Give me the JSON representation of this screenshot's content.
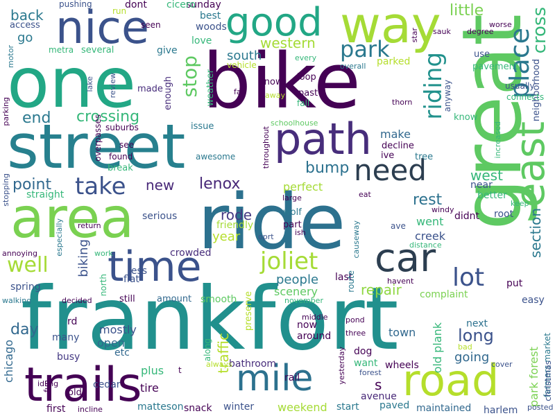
{
  "words": [
    {
      "text": "frankfort",
      "color": "#21908d"
    },
    {
      "text": "bike",
      "color": "#440154"
    },
    {
      "text": "one",
      "color": "#22a785"
    },
    {
      "text": "ride",
      "color": "#2c718e"
    },
    {
      "text": "street",
      "color": "#27808e"
    },
    {
      "text": "great",
      "color": "#5ec962"
    },
    {
      "text": "area",
      "color": "#7ad151"
    },
    {
      "text": "way",
      "color": "#a5db36"
    },
    {
      "text": "nice",
      "color": "#3b528b"
    },
    {
      "text": "path",
      "color": "#472d7b"
    },
    {
      "text": "time",
      "color": "#3b528b"
    },
    {
      "text": "trails",
      "color": "#440154"
    },
    {
      "text": "mile",
      "color": "#2c718e"
    },
    {
      "text": "road",
      "color": "#b5de2b"
    },
    {
      "text": "good",
      "color": "#22a785"
    },
    {
      "text": "car",
      "color": "#2c3e50"
    },
    {
      "text": "east",
      "color": "#5ec962"
    },
    {
      "text": "need",
      "color": "#2c3e50"
    },
    {
      "text": "park",
      "color": "#2a788e"
    },
    {
      "text": "place",
      "color": "#2a788e"
    },
    {
      "text": "riding",
      "color": "#21918c"
    },
    {
      "text": "cross",
      "color": "#35b779"
    },
    {
      "text": "neighborhood",
      "color": "#3b528b"
    },
    {
      "text": "little",
      "color": "#7ad151"
    },
    {
      "text": "western",
      "color": "#a5db36"
    },
    {
      "text": "south",
      "color": "#2a788e"
    },
    {
      "text": "stop",
      "color": "#5ec962"
    },
    {
      "text": "crossing",
      "color": "#35b779"
    },
    {
      "text": "end",
      "color": "#2a788e"
    },
    {
      "text": "take",
      "color": "#3b528b"
    },
    {
      "text": "point",
      "color": "#31688e"
    },
    {
      "text": "new",
      "color": "#482878"
    },
    {
      "text": "lenox",
      "color": "#482878"
    },
    {
      "text": "bump",
      "color": "#2c718e"
    },
    {
      "text": "well",
      "color": "#a5db36"
    },
    {
      "text": "joliet",
      "color": "#a5db36"
    },
    {
      "text": "lot",
      "color": "#3b528b"
    },
    {
      "text": "rest",
      "color": "#2c718e"
    },
    {
      "text": "west",
      "color": "#35b779"
    },
    {
      "text": "section",
      "color": "#2a788e"
    },
    {
      "text": "people",
      "color": "#2a788e"
    },
    {
      "text": "repair",
      "color": "#90d743"
    },
    {
      "text": "biking",
      "color": "#3b528b"
    },
    {
      "text": "long",
      "color": "#3b528b"
    },
    {
      "text": "going",
      "color": "#31688e"
    },
    {
      "text": "day",
      "color": "#31688e"
    },
    {
      "text": "traffic",
      "color": "#b5de2b"
    },
    {
      "text": "chicago",
      "color": "#31688e"
    },
    {
      "text": "rode",
      "color": "#443983"
    },
    {
      "text": "year",
      "color": "#b5de2b"
    },
    {
      "text": "back",
      "color": "#2a788e"
    },
    {
      "text": "go",
      "color": "#2a788e"
    },
    {
      "text": "make",
      "color": "#31688e"
    },
    {
      "text": "went",
      "color": "#35b779"
    },
    {
      "text": "creek",
      "color": "#3b528b"
    },
    {
      "text": "scenery",
      "color": "#5ec962"
    },
    {
      "text": "perfect",
      "color": "#a5db36"
    },
    {
      "text": "open",
      "color": "#31688e"
    },
    {
      "text": "mostly",
      "color": "#3b528b"
    },
    {
      "text": "winter",
      "color": "#3b528b"
    },
    {
      "text": "weekend",
      "color": "#a5db36"
    },
    {
      "text": "bathroom",
      "color": "#472d7b"
    },
    {
      "text": "avenue",
      "color": "#482878"
    },
    {
      "text": "busy",
      "color": "#443983"
    },
    {
      "text": "matteson",
      "color": "#2a788e"
    },
    {
      "text": "snack",
      "color": "#440154"
    },
    {
      "text": "tire",
      "color": "#440154"
    },
    {
      "text": "plus",
      "color": "#35b779"
    },
    {
      "text": "cedar",
      "color": "#3b528b"
    },
    {
      "text": "wheels",
      "color": "#440154"
    },
    {
      "text": "easy",
      "color": "#3b528b"
    },
    {
      "text": "next",
      "color": "#2c718e"
    },
    {
      "text": "old plank",
      "color": "#35b779"
    },
    {
      "text": "park forest",
      "color": "#7ad151"
    },
    {
      "text": "farmers market",
      "color": "#2a788e"
    },
    {
      "text": "christmas",
      "color": "#3b528b"
    },
    {
      "text": "maintained",
      "color": "#31688e"
    },
    {
      "text": "harlem",
      "color": "#3b528b"
    },
    {
      "text": "paved",
      "color": "#2a788e"
    },
    {
      "text": "start",
      "color": "#2a788e"
    },
    {
      "text": "rail",
      "color": "#440154"
    },
    {
      "text": "town",
      "color": "#31688e"
    },
    {
      "text": "dog",
      "color": "#440154"
    },
    {
      "text": "around",
      "color": "#440154"
    },
    {
      "text": "now",
      "color": "#440154"
    },
    {
      "text": "want",
      "color": "#35b779"
    },
    {
      "text": "smooth",
      "color": "#5ec962"
    },
    {
      "text": "flat",
      "color": "#3b528b"
    },
    {
      "text": "less",
      "color": "#3b528b"
    },
    {
      "text": "amount",
      "color": "#31688e"
    },
    {
      "text": "still",
      "color": "#440154"
    },
    {
      "text": "put",
      "color": "#440154"
    },
    {
      "text": "root",
      "color": "#3b528b"
    },
    {
      "text": "better",
      "color": "#35b779"
    },
    {
      "text": "near",
      "color": "#3b528b"
    },
    {
      "text": "complaint",
      "color": "#7ad151"
    },
    {
      "text": "crowded",
      "color": "#472d7b"
    },
    {
      "text": "straight",
      "color": "#35b779"
    },
    {
      "text": "spring",
      "color": "#3b528b"
    },
    {
      "text": "rd",
      "color": "#440154"
    },
    {
      "text": "many",
      "color": "#3b528b"
    },
    {
      "text": "etc",
      "color": "#31688e"
    },
    {
      "text": "serious",
      "color": "#3b528b"
    },
    {
      "text": "friendly",
      "color": "#a5db36"
    },
    {
      "text": "didnt",
      "color": "#440154"
    },
    {
      "text": "last",
      "color": "#440154"
    },
    {
      "text": "first",
      "color": "#440154"
    },
    {
      "text": "sunday",
      "color": "#440154"
    },
    {
      "text": "cicero",
      "color": "#35b779"
    },
    {
      "text": "dont",
      "color": "#440154"
    },
    {
      "text": "best",
      "color": "#2a788e"
    },
    {
      "text": "woods",
      "color": "#3b528b"
    },
    {
      "text": "love",
      "color": "#35b779"
    },
    {
      "text": "access",
      "color": "#3b528b"
    },
    {
      "text": "pushing",
      "color": "#3b528b"
    },
    {
      "text": "run",
      "color": "#b5de2b"
    },
    {
      "text": "seen",
      "color": "#440154"
    },
    {
      "text": "metra",
      "color": "#35b779"
    },
    {
      "text": "several",
      "color": "#35b779"
    },
    {
      "text": "give",
      "color": "#2a788e"
    },
    {
      "text": "made",
      "color": "#472d7b"
    },
    {
      "text": "enough",
      "color": "#472d7b"
    },
    {
      "text": "weather",
      "color": "#35b779"
    },
    {
      "text": "issue",
      "color": "#2a788e"
    },
    {
      "text": "schoolhouse",
      "color": "#5ec962"
    },
    {
      "text": "throughout",
      "color": "#440154"
    },
    {
      "text": "awesome",
      "color": "#2a788e"
    },
    {
      "text": "overpasses",
      "color": "#440154"
    },
    {
      "text": "suburbs",
      "color": "#440154"
    },
    {
      "text": "found",
      "color": "#440154"
    },
    {
      "text": "see",
      "color": "#440154"
    },
    {
      "text": "break",
      "color": "#35b779"
    },
    {
      "text": "motor",
      "color": "#2a788e"
    },
    {
      "text": "parking",
      "color": "#440154"
    },
    {
      "text": "lake",
      "color": "#3b528b"
    },
    {
      "text": "review",
      "color": "#3b528b"
    },
    {
      "text": "stopping",
      "color": "#3b528b"
    },
    {
      "text": "return",
      "color": "#440154"
    },
    {
      "text": "annoying",
      "color": "#440154"
    },
    {
      "text": "especially",
      "color": "#2a788e"
    },
    {
      "text": "work",
      "color": "#35b779"
    },
    {
      "text": "walking",
      "color": "#2a788e"
    },
    {
      "text": "decided",
      "color": "#440154"
    },
    {
      "text": "north",
      "color": "#35b779"
    },
    {
      "text": "preserve",
      "color": "#b5de2b"
    },
    {
      "text": "route",
      "color": "#2a788e"
    },
    {
      "text": "vehicle",
      "color": "#b5de2b"
    },
    {
      "text": "every",
      "color": "#35b779"
    },
    {
      "text": "loop",
      "color": "#440154"
    },
    {
      "text": "snow",
      "color": "#440154"
    },
    {
      "text": "past",
      "color": "#440154"
    },
    {
      "text": "fall",
      "color": "#35b779"
    },
    {
      "text": "away",
      "color": "#b5de2b"
    },
    {
      "text": "far",
      "color": "#440154"
    },
    {
      "text": "overall",
      "color": "#2a788e"
    },
    {
      "text": "parked",
      "color": "#b5de2b"
    },
    {
      "text": "thorn",
      "color": "#440154"
    },
    {
      "text": "decline",
      "color": "#440154"
    },
    {
      "text": "ive",
      "color": "#440154"
    },
    {
      "text": "tree",
      "color": "#2a788e"
    },
    {
      "text": "anyway",
      "color": "#3b528b"
    },
    {
      "text": "know",
      "color": "#35b779"
    },
    {
      "text": "use",
      "color": "#3b528b"
    },
    {
      "text": "pavement",
      "color": "#35b779"
    },
    {
      "text": "usually",
      "color": "#3b528b"
    },
    {
      "text": "connects",
      "color": "#35b779"
    },
    {
      "text": "sauk",
      "color": "#440154"
    },
    {
      "text": "degree",
      "color": "#440154"
    },
    {
      "text": "worse",
      "color": "#440154"
    },
    {
      "text": "star",
      "color": "#440154"
    },
    {
      "text": "increased",
      "color": "#35b779"
    },
    {
      "text": "keep",
      "color": "#35b779"
    },
    {
      "text": "windy",
      "color": "#440154"
    },
    {
      "text": "eat",
      "color": "#440154"
    },
    {
      "text": "large",
      "color": "#440154"
    },
    {
      "text": "wolf",
      "color": "#2a788e"
    },
    {
      "text": "part",
      "color": "#440154"
    },
    {
      "text": "ish",
      "color": "#440154"
    },
    {
      "text": "causeway",
      "color": "#2a788e"
    },
    {
      "text": "oprt",
      "color": "#3b528b"
    },
    {
      "text": "ave",
      "color": "#3b528b"
    },
    {
      "text": "distance",
      "color": "#35b779"
    },
    {
      "text": "havent",
      "color": "#440154"
    },
    {
      "text": "november",
      "color": "#35b779"
    },
    {
      "text": "middle",
      "color": "#440154"
    },
    {
      "text": "pond",
      "color": "#440154"
    },
    {
      "text": "three",
      "color": "#440154"
    },
    {
      "text": "yesterday",
      "color": "#440154"
    },
    {
      "text": "forest",
      "color": "#3b528b"
    },
    {
      "text": "bad",
      "color": "#b5de2b"
    },
    {
      "text": "cover",
      "color": "#3b528b"
    },
    {
      "text": "posted",
      "color": "#3b528b"
    },
    {
      "text": "incline",
      "color": "#440154"
    },
    {
      "text": "fun",
      "color": "#440154"
    },
    {
      "text": "idling",
      "color": "#440154"
    },
    {
      "text": "old",
      "color": "#440154"
    },
    {
      "text": "t",
      "color": "#440154"
    },
    {
      "text": "always",
      "color": "#b5de2b"
    },
    {
      "text": "along",
      "color": "#35b779"
    },
    {
      "text": "s",
      "color": "#440154"
    }
  ]
}
